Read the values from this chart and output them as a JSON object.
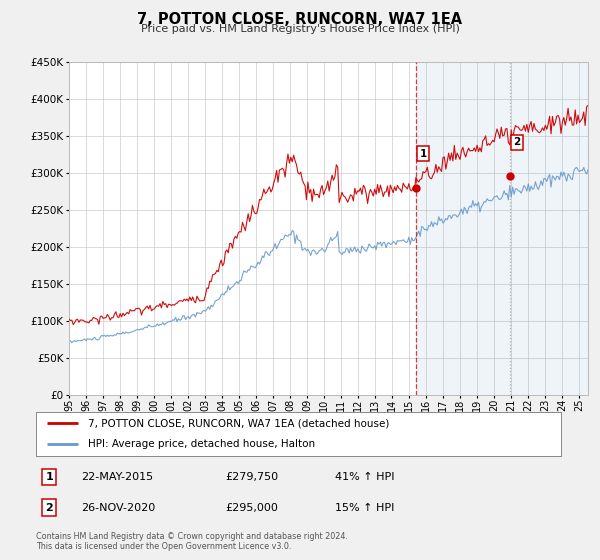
{
  "title": "7, POTTON CLOSE, RUNCORN, WA7 1EA",
  "subtitle": "Price paid vs. HM Land Registry's House Price Index (HPI)",
  "ytick_values": [
    0,
    50000,
    100000,
    150000,
    200000,
    250000,
    300000,
    350000,
    400000,
    450000
  ],
  "ylim": [
    0,
    450000
  ],
  "xlim_start": 1995.0,
  "xlim_end": 2025.5,
  "sale1_date": 2015.39,
  "sale1_price": 279750,
  "sale1_label": "1",
  "sale1_text": "22-MAY-2015",
  "sale1_pct": "41% ↑ HPI",
  "sale2_date": 2020.92,
  "sale2_price": 295000,
  "sale2_label": "2",
  "sale2_text": "26-NOV-2020",
  "sale2_pct": "15% ↑ HPI",
  "red_color": "#cc0000",
  "blue_color": "#6699cc",
  "legend_label1": "7, POTTON CLOSE, RUNCORN, WA7 1EA (detached house)",
  "legend_label2": "HPI: Average price, detached house, Halton",
  "footer1": "Contains HM Land Registry data © Crown copyright and database right 2024.",
  "footer2": "This data is licensed under the Open Government Licence v3.0.",
  "background_color": "#f0f0f0",
  "plot_background": "#ffffff",
  "grid_color": "#cccccc"
}
